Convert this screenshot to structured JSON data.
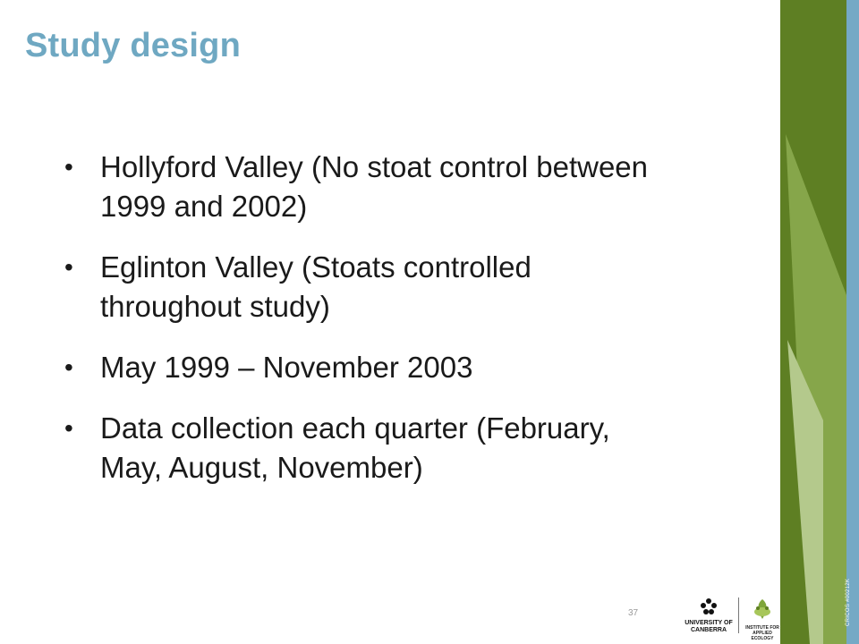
{
  "slide": {
    "title": "Study design",
    "bullets": [
      "Hollyford Valley (No stoat control between 1999 and 2002)",
      "Eglinton Valley (Stoats controlled throughout study)",
      "May 1999 – November 2003",
      "Data collection each quarter (February, May, August, November)"
    ],
    "page_number": "37"
  },
  "footer": {
    "uc_logo_line1": "UNIVERSITY OF",
    "uc_logo_line2": "CANBERRA",
    "iae_logo_line1": "INSTITUTE FOR",
    "iae_logo_line2": "APPLIED ECOLOGY",
    "watermark": "CRICOS #00212K"
  },
  "colors": {
    "title": "#6fa8c2",
    "green_dark": "#5e7f23",
    "green_mid": "#86a64a",
    "green_light": "#b4c98c",
    "blue_stripe": "#75a9c5"
  }
}
